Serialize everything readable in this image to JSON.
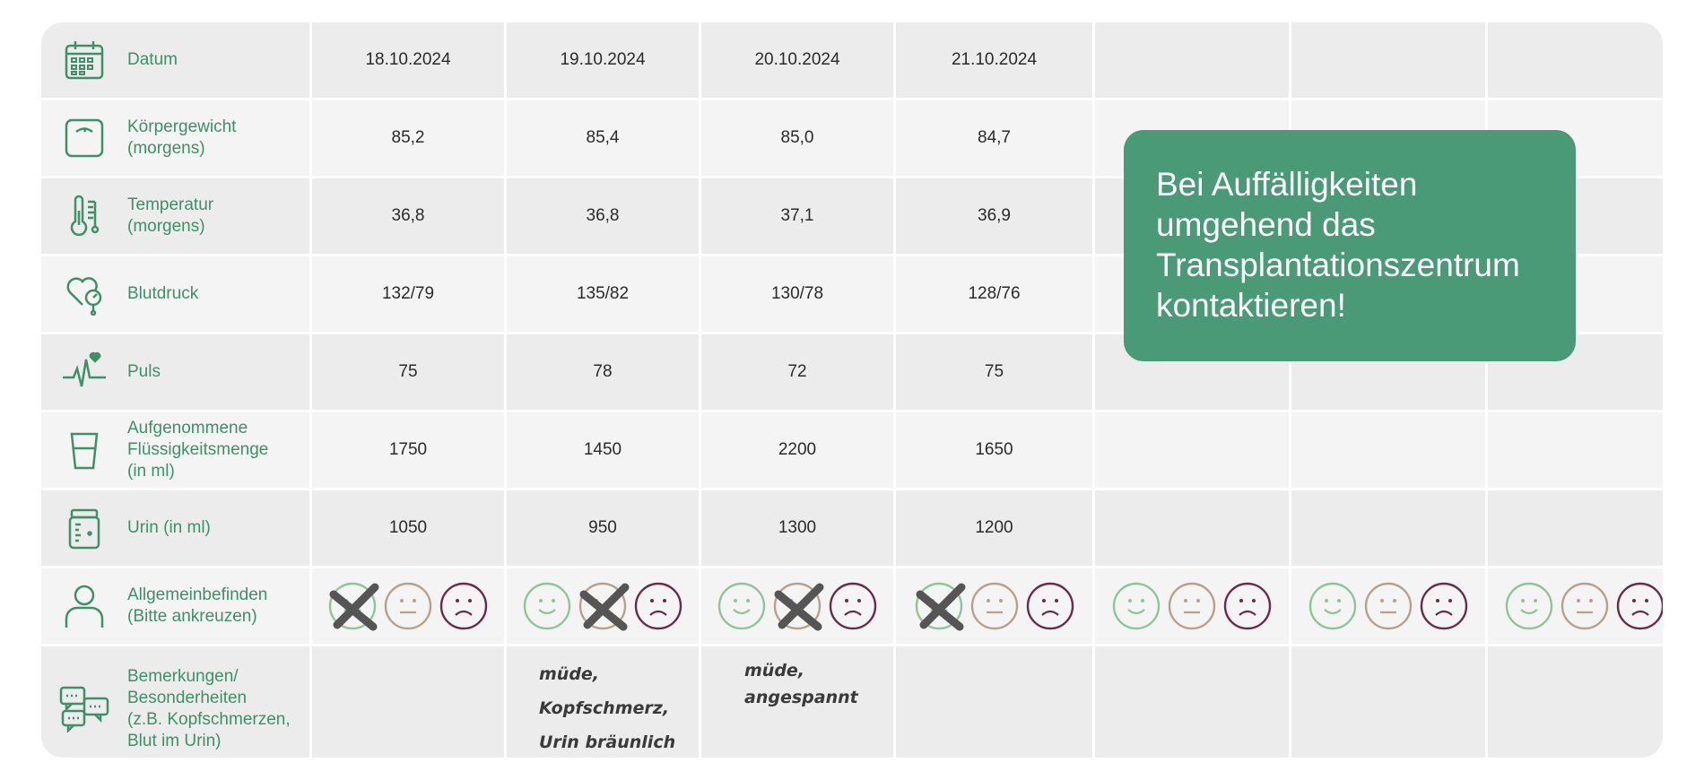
{
  "table": {
    "rows": [
      {
        "label": "Datum",
        "icon": "calendar-icon",
        "values": [
          "18.10.2024",
          "19.10.2024",
          "20.10.2024",
          "21.10.2024",
          "",
          "",
          ""
        ]
      },
      {
        "label": "Körpergewicht\n(morgens)",
        "icon": "scale-icon",
        "values": [
          "85,2",
          "85,4",
          "85,0",
          "84,7",
          "",
          "",
          ""
        ]
      },
      {
        "label": "Temperatur\n(morgens)",
        "icon": "thermometer-icon",
        "values": [
          "36,8",
          "36,8",
          "37,1",
          "36,9",
          "",
          "",
          ""
        ]
      },
      {
        "label": "Blutdruck",
        "icon": "blood-pressure-icon",
        "values": [
          "132/79",
          "135/82",
          "130/78",
          "128/76",
          "",
          "",
          ""
        ]
      },
      {
        "label": "Puls",
        "icon": "pulse-icon",
        "values": [
          "75",
          "78",
          "72",
          "75",
          "",
          "",
          ""
        ]
      },
      {
        "label": "Aufgenommene\nFlüssigkeitsmenge\n(in ml)",
        "icon": "glass-icon",
        "values": [
          "1750",
          "1450",
          "2200",
          "1650",
          "",
          "",
          ""
        ]
      },
      {
        "label": "Urin (in ml)",
        "icon": "urine-container-icon",
        "values": [
          "1050",
          "950",
          "1300",
          "1200",
          "",
          "",
          ""
        ]
      }
    ],
    "wellbeing": {
      "label": "Allgemeinbefinden\n(Bitte ankreuzen)",
      "icon": "person-icon",
      "selected": [
        "good",
        "neutral",
        "neutral",
        "good",
        "",
        "",
        ""
      ]
    },
    "remarks": {
      "label": "Bemerkungen/\nBesonderheiten\n(z.B. Kopfschmerzen,\nBlut im Urin)",
      "icon": "speech-bubbles-icon",
      "values": [
        "",
        "müde,\nKopfschmerz,\nUrin bräunlich",
        "müde,\nangespannt",
        "",
        "",
        "",
        ""
      ]
    }
  },
  "callout": {
    "text": "Bei Auffälligkeiten\numgehend das\nTransplantationszentrum\nkontaktieren!"
  },
  "colors": {
    "accent_green": "#3f8f68",
    "callout_bg": "#4a9977",
    "smiley_good": "#8fc49a",
    "smiley_neutral": "#b8a08a",
    "smiley_bad": "#6b2a4a",
    "cross": "#555555"
  }
}
